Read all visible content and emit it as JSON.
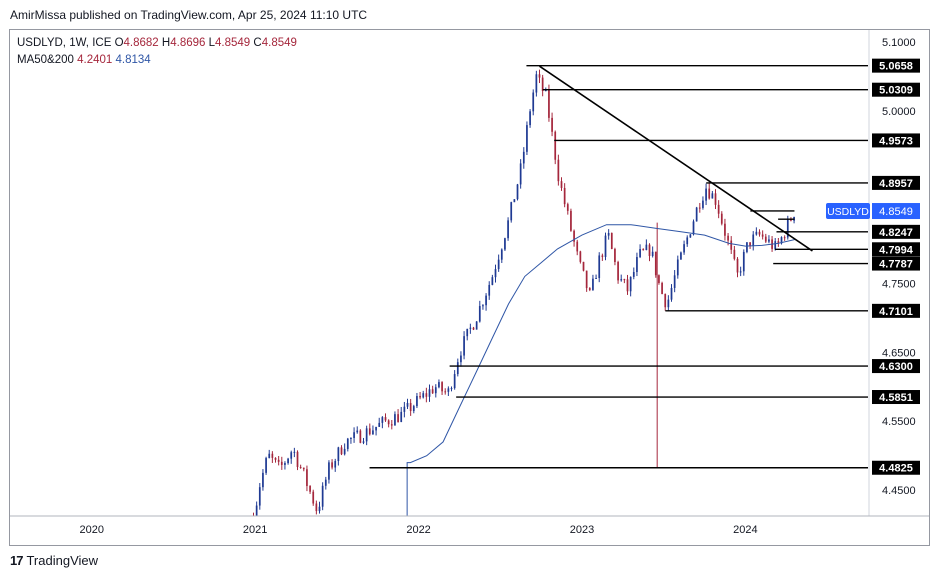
{
  "header": {
    "published": "AmirMissa published on TradingView.com, Apr 25, 2024 11:10 UTC"
  },
  "legend": {
    "symbol": "USDLYD, 1W, ICE",
    "o_label": "O",
    "o_value": "4.8682",
    "h_label": "H",
    "h_value": "4.8696",
    "l_label": "L",
    "l_value": "4.8549",
    "c_label": "C",
    "c_value": "4.8549",
    "ma_label": "MA50&200",
    "ma50_value": "4.2401",
    "ma200_value": "4.8134"
  },
  "footer": {
    "brand": "TradingView",
    "logo_text": "17"
  },
  "colors": {
    "up": "#1f3a93",
    "down": "#a5273c",
    "ma": "#2f56a6",
    "line": "#000000",
    "badge": "#2962ff"
  },
  "chart_data": {
    "type": "candlestick",
    "symbol_badge": "USDLYD",
    "last_price": "4.8549",
    "y_range": [
      4.4125,
      5.1175
    ],
    "x_range": [
      2019.5,
      2024.75
    ],
    "x_ticks": [
      {
        "label": "2020",
        "value": 2020.0
      },
      {
        "label": "2021",
        "value": 2021.0
      },
      {
        "label": "2022",
        "value": 2022.0
      },
      {
        "label": "2023",
        "value": 2023.0
      },
      {
        "label": "2024",
        "value": 2024.0
      }
    ],
    "y_ticks": [
      "5.1000",
      "5.0000",
      "4.7500",
      "4.6500",
      "4.5500",
      "4.4500"
    ],
    "price_levels": [
      {
        "label": "5.0658",
        "value": 5.0658,
        "x_start": 2022.66
      },
      {
        "label": "5.0309",
        "value": 5.0309,
        "x_start": 2022.76
      },
      {
        "label": "4.9573",
        "value": 4.9573,
        "x_start": 2022.83
      },
      {
        "label": "4.8957",
        "value": 4.8957,
        "x_start": 2023.76
      },
      {
        "label": "4.8247",
        "value": 4.8247,
        "x_start": 2024.19
      },
      {
        "label": "4.7994",
        "value": 4.7994,
        "x_start": 2024.18
      },
      {
        "label": "4.7787",
        "value": 4.7787,
        "x_start": 2024.17
      },
      {
        "label": "4.7101",
        "value": 4.7101,
        "x_start": 2023.51
      },
      {
        "label": "4.6300",
        "value": 4.63,
        "x_start": 2022.19
      },
      {
        "label": "4.5851",
        "value": 4.5851,
        "x_start": 2022.23
      },
      {
        "label": "4.4825",
        "value": 4.4825,
        "x_start": 2021.7
      }
    ],
    "trendline": {
      "start": [
        2022.74,
        5.065
      ],
      "end": [
        2024.41,
        4.797
      ]
    },
    "short_levels": [
      {
        "value": 4.855,
        "x_start": 2024.03,
        "x_end": 2024.3
      },
      {
        "value": 4.843,
        "x_start": 2024.2,
        "x_end": 2024.3
      }
    ],
    "spike": {
      "x": 2023.46,
      "high": 4.838,
      "low": 4.482
    },
    "key_points": [
      [
        2020.99,
        4.41
      ],
      [
        2021.03,
        4.46
      ],
      [
        2021.08,
        4.5
      ],
      [
        2021.15,
        4.48
      ],
      [
        2021.23,
        4.51
      ],
      [
        2021.3,
        4.47
      ],
      [
        2021.38,
        4.42
      ],
      [
        2021.45,
        4.48
      ],
      [
        2021.55,
        4.52
      ],
      [
        2021.65,
        4.53
      ],
      [
        2021.8,
        4.55
      ],
      [
        2021.9,
        4.56
      ],
      [
        2022.0,
        4.58
      ],
      [
        2022.1,
        4.6
      ],
      [
        2022.18,
        4.59
      ],
      [
        2022.25,
        4.65
      ],
      [
        2022.35,
        4.7
      ],
      [
        2022.45,
        4.76
      ],
      [
        2022.55,
        4.84
      ],
      [
        2022.63,
        4.92
      ],
      [
        2022.68,
        5.0
      ],
      [
        2022.72,
        5.05
      ],
      [
        2022.78,
        5.02
      ],
      [
        2022.82,
        4.96
      ],
      [
        2022.86,
        4.9
      ],
      [
        2022.92,
        4.84
      ],
      [
        2022.98,
        4.78
      ],
      [
        2023.05,
        4.73
      ],
      [
        2023.1,
        4.78
      ],
      [
        2023.16,
        4.82
      ],
      [
        2023.22,
        4.76
      ],
      [
        2023.28,
        4.74
      ],
      [
        2023.35,
        4.79
      ],
      [
        2023.42,
        4.8
      ],
      [
        2023.48,
        4.74
      ],
      [
        2023.52,
        4.72
      ],
      [
        2023.58,
        4.77
      ],
      [
        2023.65,
        4.82
      ],
      [
        2023.72,
        4.87
      ],
      [
        2023.76,
        4.89
      ],
      [
        2023.82,
        4.87
      ],
      [
        2023.88,
        4.82
      ],
      [
        2023.95,
        4.76
      ],
      [
        2024.02,
        4.81
      ],
      [
        2024.09,
        4.82
      ],
      [
        2024.14,
        4.81
      ],
      [
        2024.19,
        4.8
      ],
      [
        2024.25,
        4.83
      ],
      [
        2024.3,
        4.855
      ]
    ],
    "ma_points": [
      [
        2021.95,
        4.49
      ],
      [
        2022.05,
        4.5
      ],
      [
        2022.15,
        4.52
      ],
      [
        2022.25,
        4.57
      ],
      [
        2022.35,
        4.62
      ],
      [
        2022.45,
        4.67
      ],
      [
        2022.55,
        4.72
      ],
      [
        2022.65,
        4.76
      ],
      [
        2022.75,
        4.78
      ],
      [
        2022.85,
        4.8
      ],
      [
        2023.0,
        4.82
      ],
      [
        2023.15,
        4.835
      ],
      [
        2023.3,
        4.835
      ],
      [
        2023.45,
        4.83
      ],
      [
        2023.6,
        4.825
      ],
      [
        2023.75,
        4.82
      ],
      [
        2023.9,
        4.808
      ],
      [
        2024.0,
        4.804
      ],
      [
        2024.1,
        4.805
      ],
      [
        2024.2,
        4.808
      ],
      [
        2024.3,
        4.8134
      ]
    ],
    "ma_drop": {
      "x": 2021.93,
      "from": 4.49,
      "to": 4.41
    }
  }
}
